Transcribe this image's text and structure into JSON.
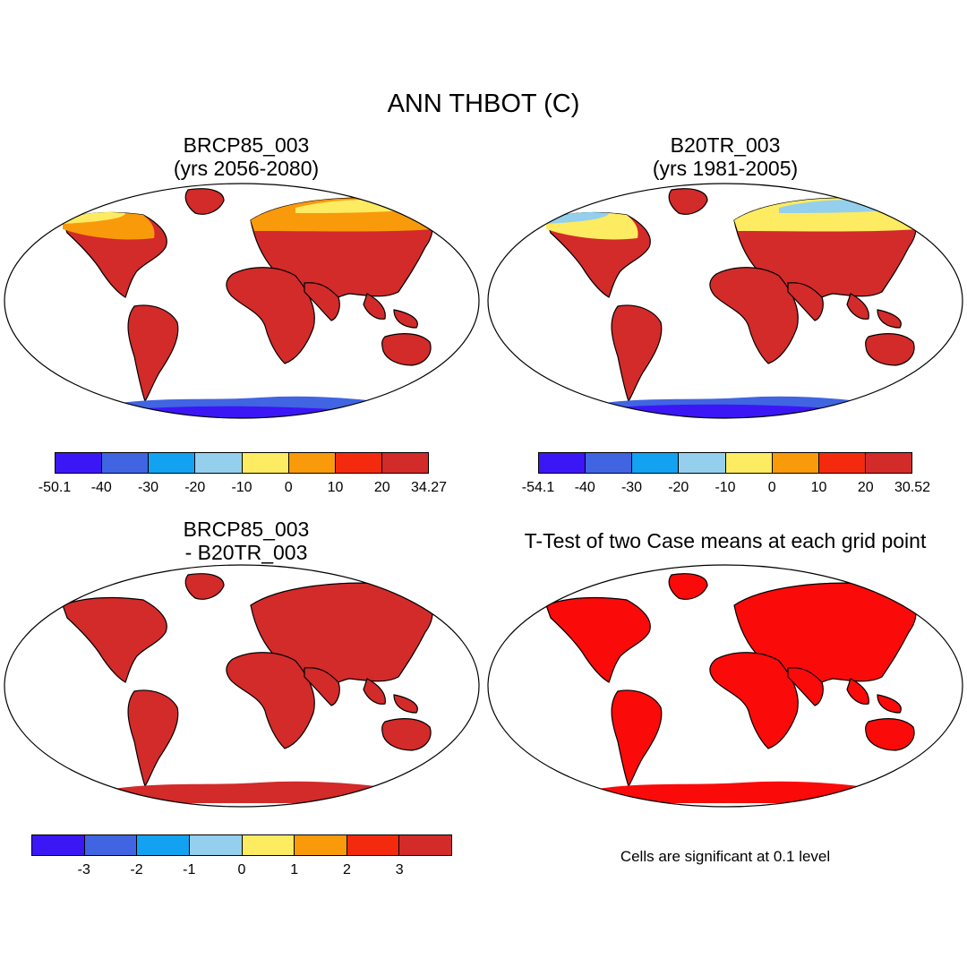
{
  "title": "ANN THBOT (C)",
  "panels": [
    {
      "title_line1": "BRCP85_003",
      "title_line2": "(yrs 2056-2080)"
    },
    {
      "title_line1": "B20TR_003",
      "title_line2": "(yrs 1981-2005)"
    },
    {
      "title_line1": "BRCP85_003",
      "title_line2": "- B20TR_003"
    },
    {
      "title_line1": "T-Test of two Case means at each grid point",
      "title_line2": ""
    }
  ],
  "colorbars": {
    "absolute": {
      "colors": [
        "#3b17f5",
        "#4064e2",
        "#12a2f1",
        "#95cfee",
        "#fdeb62",
        "#f99a0a",
        "#f42a0f",
        "#d32a2a"
      ]
    },
    "cb1_labels": [
      "-50.1",
      "-40",
      "-30",
      "-20",
      "-10",
      "0",
      "10",
      "20",
      "34.27"
    ],
    "cb2_labels": [
      "-54.1",
      "-40",
      "-30",
      "-20",
      "-10",
      "0",
      "10",
      "20",
      "30.52"
    ],
    "cb3_labels": [
      "-3",
      "-2",
      "-1",
      "0",
      "1",
      "2",
      "3"
    ]
  },
  "significance_note": "Cells are significant at 0.1 level",
  "map_colors": {
    "ocean": "#ffffff",
    "hot": "#d32a2a",
    "warm": "#f42a0f",
    "mild": "#f99a0a",
    "cool": "#fdeb62",
    "cold": "#95cfee",
    "colder": "#12a2f1",
    "freezing": "#4064e2",
    "extreme": "#3b17f5",
    "significant": "#fb0a0a"
  }
}
